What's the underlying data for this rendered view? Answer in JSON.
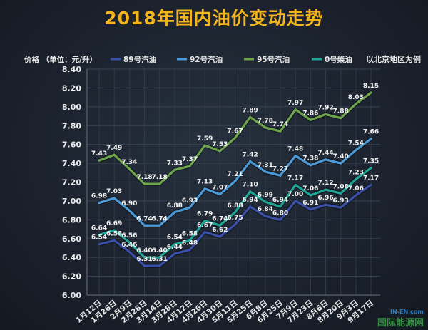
{
  "chart_data": {
    "type": "line",
    "title": "2018年国内油价变动走势",
    "ylabel": "价格 （单位：元/升）",
    "note": "以北京地区为例",
    "ylim": [
      6.0,
      8.4
    ],
    "yticks": [
      "6.00",
      "6.20",
      "6.40",
      "6.60",
      "6.80",
      "7.00",
      "7.20",
      "7.40",
      "7.60",
      "7.80",
      "8.00",
      "8.20",
      "8.40"
    ],
    "grid": true,
    "legend_position": "top",
    "categories": [
      "1月12日",
      "1月26日",
      "2月9日",
      "2月28日",
      "3月14日",
      "3月28日",
      "4月12日",
      "4月26日",
      "4月30日",
      "5月11日",
      "5月25日",
      "6月8日",
      "6月25日",
      "7月9日",
      "7月23日",
      "8月6日",
      "8月20日",
      "9月3日",
      "9月17日"
    ],
    "series": [
      {
        "name": "89号汽油",
        "color": "#3a4fa8",
        "values": [
          6.54,
          6.58,
          6.46,
          6.31,
          6.31,
          6.44,
          6.48,
          6.67,
          6.62,
          6.75,
          6.94,
          6.84,
          6.8,
          7.0,
          6.91,
          6.96,
          6.93,
          7.06,
          7.17
        ],
        "labels": [
          "6.54",
          "6.58",
          "6.46",
          "6.31",
          "6.31",
          "6.44",
          "6.48",
          "6.67",
          "6.62",
          "6.75",
          "6.94",
          "6.84",
          "6.80",
          "7.00",
          "6.91",
          "6.96",
          "6.93",
          "7.06",
          "7.17"
        ]
      },
      {
        "name": "92号汽油",
        "color": "#4a9ad8",
        "values": [
          6.98,
          7.03,
          6.9,
          6.74,
          6.74,
          6.88,
          6.93,
          7.13,
          7.07,
          7.21,
          7.42,
          7.31,
          7.27,
          7.48,
          7.38,
          7.44,
          7.4,
          7.54,
          7.66
        ],
        "labels": [
          "6.98",
          "7.03",
          "6.90",
          "6.74",
          "6.74",
          "6.88",
          "6.93",
          "7.13",
          "7.07",
          "7.21",
          "7.42",
          "7.31",
          "7.27",
          "7.48",
          "7.38",
          "7.44",
          "7.40",
          "7.54",
          "7.66"
        ]
      },
      {
        "name": "95号汽油",
        "color": "#6ea44c",
        "values": [
          7.43,
          7.49,
          7.34,
          7.18,
          7.18,
          7.33,
          7.37,
          7.59,
          7.53,
          7.67,
          7.89,
          7.78,
          7.74,
          7.97,
          7.86,
          7.92,
          7.88,
          8.03,
          8.15
        ],
        "labels": [
          "7.43",
          "7.49",
          "7.34",
          "7.18",
          "7.18",
          "7.33",
          "7.37",
          "7.59",
          "7.53",
          "7.67",
          "7.89",
          "7.78",
          "7.74",
          "7.97",
          "7.86",
          "7.92",
          "7.88",
          "8.03",
          "8.15"
        ]
      },
      {
        "name": "0号柴油",
        "color": "#1fa596",
        "values": [
          6.64,
          6.69,
          6.56,
          6.4,
          6.4,
          6.54,
          6.58,
          6.79,
          6.74,
          6.88,
          7.1,
          6.99,
          6.94,
          7.17,
          7.06,
          7.12,
          7.08,
          7.23,
          7.35
        ],
        "labels": [
          "6.64",
          "6.69",
          "6.56",
          "6.40",
          "6.40",
          "6.54",
          "6.58",
          "6.79",
          "6.74",
          "6.88",
          "7.10",
          "6.99",
          "6.94",
          "7.17",
          "7.06",
          "7.12",
          "7.08",
          "7.23",
          "7.35"
        ]
      }
    ]
  },
  "watermark": {
    "text": "国际能源网",
    "small": "IN-EN.com"
  }
}
